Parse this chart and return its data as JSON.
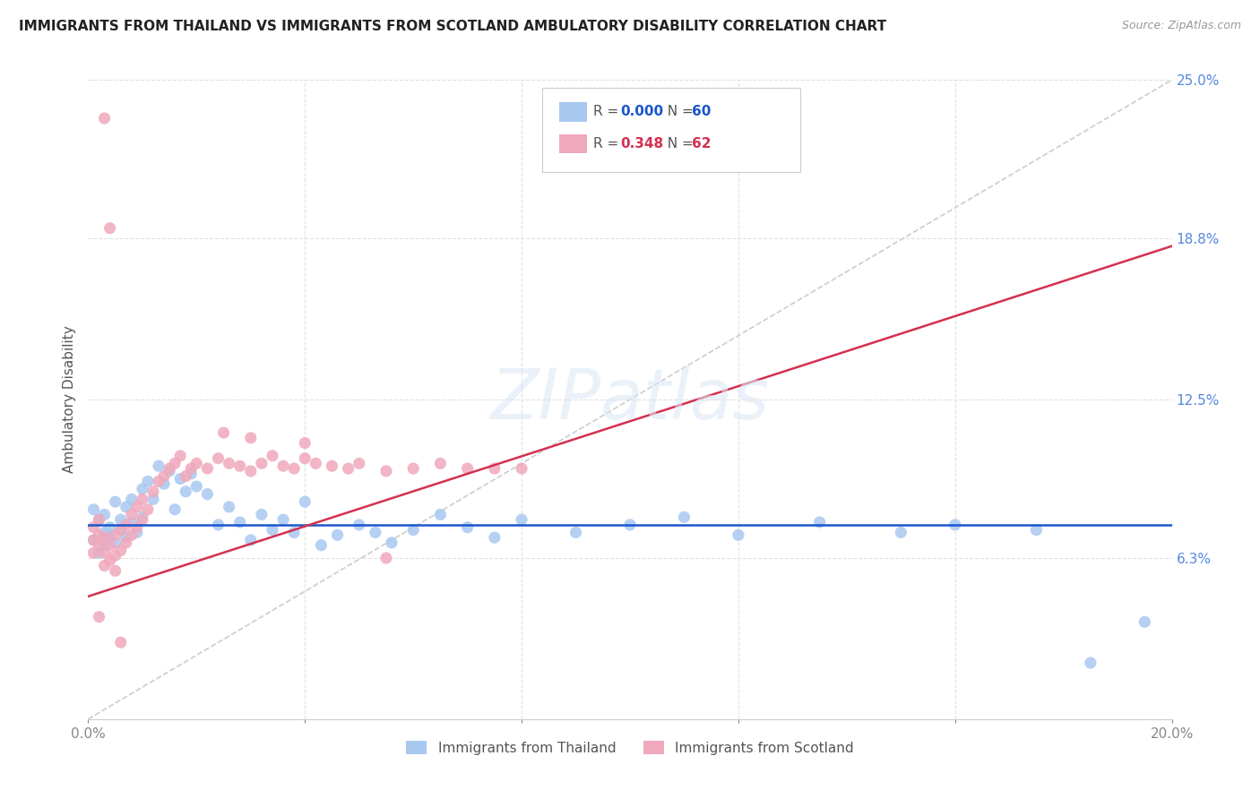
{
  "title": "IMMIGRANTS FROM THAILAND VS IMMIGRANTS FROM SCOTLAND AMBULATORY DISABILITY CORRELATION CHART",
  "source": "Source: ZipAtlas.com",
  "ylabel": "Ambulatory Disability",
  "xlim": [
    0.0,
    0.2
  ],
  "ylim": [
    0.0,
    0.25
  ],
  "y_ticks_right": [
    0.063,
    0.125,
    0.188,
    0.25
  ],
  "y_tick_labels_right": [
    "6.3%",
    "12.5%",
    "18.8%",
    "25.0%"
  ],
  "thailand_R": 0.0,
  "thailand_N": 60,
  "scotland_R": 0.348,
  "scotland_N": 62,
  "color_thailand": "#a8c8f0",
  "color_scotland": "#f0a8bc",
  "color_trend_thailand": "#1a56cc",
  "color_trend_scotland": "#d43050",
  "color_dashed_line": "#cccccc",
  "watermark": "ZIPatlas",
  "thailand_trend_y": 0.076,
  "scotland_trend_x0": 0.0,
  "scotland_trend_y0": 0.048,
  "scotland_trend_x1": 0.2,
  "scotland_trend_y1": 0.185,
  "thailand_x": [
    0.001,
    0.001,
    0.002,
    0.002,
    0.003,
    0.003,
    0.003,
    0.004,
    0.004,
    0.005,
    0.005,
    0.006,
    0.006,
    0.007,
    0.007,
    0.008,
    0.008,
    0.009,
    0.01,
    0.01,
    0.011,
    0.012,
    0.013,
    0.014,
    0.015,
    0.016,
    0.017,
    0.018,
    0.019,
    0.02,
    0.022,
    0.024,
    0.026,
    0.028,
    0.03,
    0.032,
    0.034,
    0.036,
    0.038,
    0.04,
    0.043,
    0.046,
    0.05,
    0.053,
    0.056,
    0.06,
    0.065,
    0.07,
    0.075,
    0.08,
    0.09,
    0.1,
    0.11,
    0.12,
    0.135,
    0.15,
    0.16,
    0.175,
    0.185,
    0.195
  ],
  "thailand_y": [
    0.07,
    0.082,
    0.065,
    0.078,
    0.073,
    0.068,
    0.08,
    0.075,
    0.072,
    0.085,
    0.069,
    0.074,
    0.078,
    0.083,
    0.071,
    0.077,
    0.086,
    0.073,
    0.09,
    0.079,
    0.093,
    0.086,
    0.099,
    0.092,
    0.097,
    0.082,
    0.094,
    0.089,
    0.096,
    0.091,
    0.088,
    0.076,
    0.083,
    0.077,
    0.07,
    0.08,
    0.074,
    0.078,
    0.073,
    0.085,
    0.068,
    0.072,
    0.076,
    0.073,
    0.069,
    0.074,
    0.08,
    0.075,
    0.071,
    0.078,
    0.073,
    0.076,
    0.079,
    0.072,
    0.077,
    0.073,
    0.076,
    0.074,
    0.022,
    0.038
  ],
  "scotland_x": [
    0.001,
    0.001,
    0.001,
    0.002,
    0.002,
    0.002,
    0.003,
    0.003,
    0.003,
    0.004,
    0.004,
    0.005,
    0.005,
    0.005,
    0.006,
    0.006,
    0.007,
    0.007,
    0.008,
    0.008,
    0.009,
    0.009,
    0.01,
    0.01,
    0.011,
    0.012,
    0.013,
    0.014,
    0.015,
    0.016,
    0.017,
    0.018,
    0.019,
    0.02,
    0.022,
    0.024,
    0.026,
    0.028,
    0.03,
    0.032,
    0.034,
    0.036,
    0.038,
    0.04,
    0.042,
    0.045,
    0.048,
    0.05,
    0.055,
    0.06,
    0.065,
    0.07,
    0.075,
    0.08,
    0.003,
    0.004,
    0.025,
    0.03,
    0.04,
    0.055,
    0.002,
    0.006
  ],
  "scotland_y": [
    0.065,
    0.07,
    0.075,
    0.068,
    0.072,
    0.078,
    0.06,
    0.065,
    0.071,
    0.062,
    0.068,
    0.058,
    0.064,
    0.072,
    0.066,
    0.074,
    0.069,
    0.076,
    0.072,
    0.08,
    0.075,
    0.083,
    0.078,
    0.086,
    0.082,
    0.089,
    0.093,
    0.095,
    0.098,
    0.1,
    0.103,
    0.095,
    0.098,
    0.1,
    0.098,
    0.102,
    0.1,
    0.099,
    0.097,
    0.1,
    0.103,
    0.099,
    0.098,
    0.102,
    0.1,
    0.099,
    0.098,
    0.1,
    0.097,
    0.098,
    0.1,
    0.098,
    0.098,
    0.098,
    0.235,
    0.192,
    0.112,
    0.11,
    0.108,
    0.063,
    0.04,
    0.03
  ]
}
